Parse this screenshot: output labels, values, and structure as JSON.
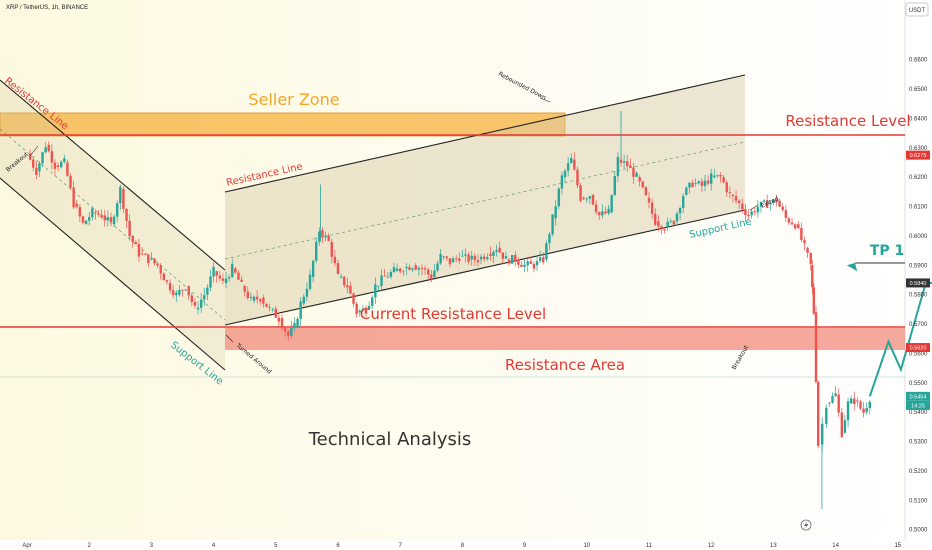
{
  "header": {
    "symbol_title": "XRP / TetherUS, 1h, BINANCE",
    "currency_badge": "USDT"
  },
  "chart_data": {
    "type": "candlestick",
    "title": "XRP / TetherUS, 1h, BINANCE",
    "yaxis_ticks": [
      "0.6600",
      "0.6500",
      "0.6400",
      "0.6300",
      "0.6200",
      "0.6100",
      "0.6000",
      "0.5900",
      "0.5800",
      "0.5700",
      "0.5600",
      "0.5500",
      "0.5400",
      "0.5300",
      "0.5200",
      "0.5100",
      "0.5000"
    ],
    "ylim": [
      0.4965,
      0.6735
    ],
    "xaxis_ticks": [
      "Apr",
      "2",
      "3",
      "4",
      "5",
      "6",
      "7",
      "8",
      "9",
      "10",
      "11",
      "12",
      "13",
      "14",
      "15"
    ],
    "price_labels": [
      {
        "text": "0.6275",
        "value": 0.6275,
        "color": "#e53935"
      },
      {
        "text": "0.5840",
        "value": 0.584,
        "color": "#333333"
      },
      {
        "text": "0.5620",
        "value": 0.562,
        "color": "#e53935"
      },
      {
        "text": "0.5454",
        "value": 0.5454,
        "color": "#26a69a"
      },
      {
        "text": "14:25",
        "value": 0.5423,
        "color": "#26a69a"
      }
    ],
    "colors": {
      "up": "#26a69a",
      "down": "#ef5350",
      "resistance": "#e53935",
      "support_text": "#26a69a",
      "seller_zone": "#f5a623",
      "resistance_area": "#f28b7b",
      "channel_fill": "#d8c9a3"
    },
    "key_levels": {
      "resistance_level": 0.6275,
      "current_resistance_level": 0.562,
      "tp1": 0.584,
      "last_price": 0.5454
    },
    "annotations": {
      "seller_zone": "Seller Zone",
      "resistance_level": "Resistance Level",
      "current_resistance_level": "Current Resistance Level",
      "resistance_area": "Resistance Area",
      "technical_analysis": "Technical Analysis",
      "tp1": "TP 1",
      "resistance_line_left": "Resistance Line",
      "resistance_line_mid": "Resistance Line",
      "support_line_left": "Support Line",
      "support_line_right": "Support Line",
      "breakout_left": "Breakout",
      "breakout_right": "Breakout",
      "turned_around": "Turned Around",
      "rebounded_down": "Rebounded Down",
      "exited": "Exited"
    },
    "price_path": [
      [
        0.0,
        0.628
      ],
      [
        0.15,
        0.622
      ],
      [
        0.3,
        0.631
      ],
      [
        0.45,
        0.624
      ],
      [
        0.6,
        0.625
      ],
      [
        0.75,
        0.611
      ],
      [
        0.9,
        0.604
      ],
      [
        1.05,
        0.608
      ],
      [
        1.2,
        0.607
      ],
      [
        1.35,
        0.604
      ],
      [
        1.5,
        0.616
      ],
      [
        1.65,
        0.6
      ],
      [
        1.8,
        0.594
      ],
      [
        1.95,
        0.592
      ],
      [
        2.1,
        0.59
      ],
      [
        2.25,
        0.584
      ],
      [
        2.4,
        0.58
      ],
      [
        2.55,
        0.583
      ],
      [
        2.7,
        0.575
      ],
      [
        2.85,
        0.58
      ],
      [
        3.0,
        0.588
      ],
      [
        3.15,
        0.584
      ],
      [
        3.3,
        0.589
      ],
      [
        3.45,
        0.583
      ],
      [
        3.6,
        0.578
      ],
      [
        3.75,
        0.579
      ],
      [
        3.9,
        0.575
      ],
      [
        4.05,
        0.572
      ],
      [
        4.2,
        0.566
      ],
      [
        4.3,
        0.569
      ],
      [
        4.4,
        0.577
      ],
      [
        4.55,
        0.586
      ],
      [
        4.7,
        0.602
      ],
      [
        4.85,
        0.598
      ],
      [
        5.0,
        0.586
      ],
      [
        5.15,
        0.583
      ],
      [
        5.3,
        0.574
      ],
      [
        5.45,
        0.575
      ],
      [
        5.6,
        0.583
      ],
      [
        5.75,
        0.586
      ],
      [
        5.9,
        0.588
      ],
      [
        6.05,
        0.589
      ],
      [
        6.2,
        0.59
      ],
      [
        6.35,
        0.589
      ],
      [
        6.5,
        0.586
      ],
      [
        6.65,
        0.593
      ],
      [
        6.8,
        0.591
      ],
      [
        6.95,
        0.593
      ],
      [
        7.1,
        0.592
      ],
      [
        7.25,
        0.592
      ],
      [
        7.4,
        0.594
      ],
      [
        7.55,
        0.596
      ],
      [
        7.7,
        0.592
      ],
      [
        7.85,
        0.592
      ],
      [
        8.0,
        0.59
      ],
      [
        8.15,
        0.59
      ],
      [
        8.3,
        0.592
      ],
      [
        8.45,
        0.606
      ],
      [
        8.6,
        0.62
      ],
      [
        8.75,
        0.626
      ],
      [
        8.9,
        0.613
      ],
      [
        9.05,
        0.614
      ],
      [
        9.2,
        0.607
      ],
      [
        9.35,
        0.608
      ],
      [
        9.5,
        0.626
      ],
      [
        9.65,
        0.624
      ],
      [
        9.8,
        0.62
      ],
      [
        9.95,
        0.613
      ],
      [
        10.1,
        0.605
      ],
      [
        10.25,
        0.603
      ],
      [
        10.4,
        0.605
      ],
      [
        10.55,
        0.614
      ],
      [
        10.7,
        0.618
      ],
      [
        10.85,
        0.617
      ],
      [
        11.0,
        0.62
      ],
      [
        11.15,
        0.62
      ],
      [
        11.3,
        0.614
      ],
      [
        11.45,
        0.611
      ],
      [
        11.6,
        0.607
      ],
      [
        11.75,
        0.61
      ],
      [
        11.9,
        0.611
      ],
      [
        12.05,
        0.612
      ],
      [
        12.2,
        0.606
      ],
      [
        12.35,
        0.604
      ],
      [
        12.5,
        0.596
      ],
      [
        12.6,
        0.59
      ],
      [
        12.65,
        0.574
      ],
      [
        12.72,
        0.529
      ],
      [
        12.85,
        0.543
      ],
      [
        13.0,
        0.546
      ],
      [
        13.1,
        0.533
      ],
      [
        13.2,
        0.543
      ],
      [
        13.3,
        0.544
      ],
      [
        13.45,
        0.54
      ],
      [
        13.55,
        0.545
      ]
    ],
    "projection": [
      [
        13.55,
        0.5454
      ],
      [
        13.85,
        0.564
      ],
      [
        14.05,
        0.5545
      ],
      [
        14.45,
        0.584
      ],
      [
        15.0,
        0.584
      ]
    ]
  }
}
